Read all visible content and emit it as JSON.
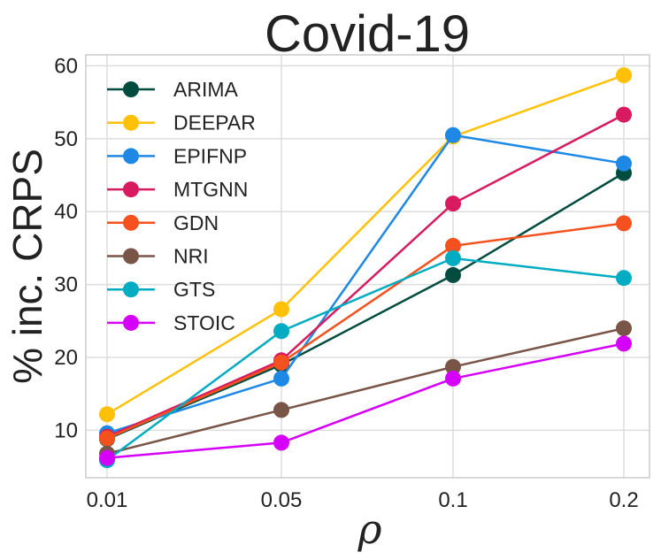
{
  "chart_data": {
    "type": "line",
    "title": "Covid-19",
    "xlabel": "ρ",
    "ylabel": "% inc. CRPS",
    "categories": [
      "0.01",
      "0.05",
      "0.1",
      "0.2"
    ],
    "ylim": [
      3.5,
      61.5
    ],
    "yticks": [
      "10",
      "20",
      "30",
      "40",
      "50",
      "60"
    ],
    "grid": true,
    "legend_position": "top-left",
    "series": [
      {
        "name": "ARIMA",
        "color": "#004d40",
        "values": [
          8.8,
          19.0,
          31.3,
          45.3
        ]
      },
      {
        "name": "DEEPAR",
        "color": "#ffc107",
        "values": [
          12.2,
          26.6,
          50.3,
          58.7
        ]
      },
      {
        "name": "EPIFNP",
        "color": "#1e88e5",
        "values": [
          9.6,
          17.1,
          50.5,
          46.6
        ]
      },
      {
        "name": "MTGNN",
        "color": "#d81b60",
        "values": [
          9.1,
          19.6,
          41.1,
          53.3
        ]
      },
      {
        "name": "GDN",
        "color": "#f4511e",
        "values": [
          8.9,
          19.3,
          35.3,
          38.4
        ]
      },
      {
        "name": "NRI",
        "color": "#795548",
        "values": [
          6.8,
          12.8,
          18.7,
          24.0
        ]
      },
      {
        "name": "GTS",
        "color": "#00acc1",
        "values": [
          5.9,
          23.6,
          33.6,
          30.9
        ]
      },
      {
        "name": "STOIC",
        "color": "#d500f9",
        "values": [
          6.2,
          8.3,
          17.1,
          21.9
        ]
      }
    ]
  }
}
